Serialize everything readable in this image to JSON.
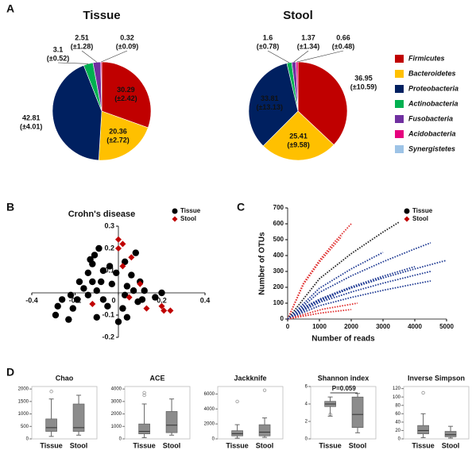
{
  "panel_labels": [
    "A",
    "B",
    "C",
    "D"
  ],
  "chart_data": [
    {
      "type": "pie",
      "categories": [
        "Firmicutes",
        "Bacteroidetes",
        "Proteobacteria",
        "Actinobacteria",
        "Fusobacteria",
        "Acidobacteria",
        "Synergistetes"
      ],
      "colors": [
        "#c00000",
        "#ffc000",
        "#002060",
        "#00b050",
        "#7030a0",
        "#e6007e",
        "#9dc3e6"
      ],
      "series": [
        {
          "name": "Tissue",
          "values": [
            30.29,
            20.36,
            42.81,
            3.1,
            2.51,
            0.32,
            null
          ],
          "error_labels": [
            "(±2.42)",
            "(±2.72)",
            "(±4.01)",
            "(±0.52)",
            "(±1.28)",
            "(±0.09)",
            null
          ]
        },
        {
          "name": "Stool",
          "values": [
            36.95,
            25.41,
            33.81,
            1.6,
            1.37,
            0.66,
            null
          ],
          "error_labels": [
            "(±10.59)",
            "(±9.58)",
            "(±13.13)",
            "(±0.78)",
            "(±1.34)",
            "(±0.48)",
            null
          ]
        }
      ]
    },
    {
      "type": "scatter",
      "title": "Crohn's disease",
      "xlim": [
        -0.4,
        0.4
      ],
      "ylim": [
        -0.2,
        0.3
      ],
      "xticks": [
        -0.4,
        -0.2,
        0,
        0.2,
        0.4
      ],
      "yticks": [
        -0.2,
        -0.1,
        0.1,
        0.2,
        0.3
      ],
      "series": [
        {
          "name": "Tissue",
          "color": "#000000",
          "marker": "circle",
          "x": [
            -0.09,
            -0.11,
            -0.13,
            0.08,
            0.03,
            -0.04,
            -0.07,
            -0.14,
            -0.01,
            0.06,
            -0.18,
            -0.12,
            -0.08,
            -0.03,
            0.04,
            0.1,
            -0.16,
            -0.1,
            0.07,
            0.12,
            -0.22,
            -0.14,
            0.03,
            0.17,
            -0.26,
            -0.19,
            -0.07,
            0.09,
            -0.28,
            -0.21,
            -0.05,
            0.02,
            -0.29,
            -0.23,
            -0.1,
            0.04,
            0.0,
            0.11,
            0.2,
            -0.12
          ],
          "values": [
            0.2,
            0.17,
            0.15,
            0.18,
            0.14,
            0.12,
            0.1,
            0.09,
            0.09,
            0.08,
            0.05,
            0.05,
            0.05,
            0.04,
            0.03,
            0.05,
            0.02,
            0.01,
            0.01,
            0.01,
            -0.01,
            -0.01,
            -0.01,
            -0.02,
            -0.03,
            -0.03,
            -0.03,
            -0.04,
            -0.06,
            -0.07,
            -0.06,
            -0.07,
            -0.1,
            -0.12,
            -0.11,
            -0.11,
            -0.13,
            -0.03,
            0.0,
            0.13
          ]
        },
        {
          "name": "Stool",
          "color": "#c00000",
          "marker": "diamond",
          "x": [
            0.0,
            0.02,
            0.0,
            0.06,
            0.02,
            0.1,
            -0.12,
            0.13,
            0.2,
            0.24,
            0.21,
            0.05
          ],
          "values": [
            0.24,
            0.22,
            0.2,
            0.16,
            0.12,
            0.04,
            -0.05,
            -0.07,
            -0.06,
            -0.08,
            -0.08,
            -0.02
          ]
        }
      ]
    },
    {
      "type": "line",
      "x_label": "Number of reads",
      "y_label": "Number of OTUs",
      "xlim": [
        0,
        5000
      ],
      "ylim": [
        0,
        700
      ],
      "xticks": [
        0,
        1000,
        2000,
        3000,
        4000,
        5000
      ],
      "yticks": [
        0,
        100,
        200,
        300,
        400,
        500,
        600,
        700
      ],
      "series": [
        {
          "name": "Tissue",
          "color": "#000000",
          "marker": "circle"
        },
        {
          "name": "Stool",
          "color": "#c00000",
          "marker": "diamond"
        }
      ],
      "curves": [
        {
          "color": "#e03030",
          "x": [
            0,
            500,
            1000,
            1500,
            2000
          ],
          "values": [
            0,
            227,
            370,
            491,
            600
          ]
        },
        {
          "color": "#e03030",
          "x": [
            0,
            500,
            1000,
            1700
          ],
          "values": [
            0,
            220,
            359,
            520
          ]
        },
        {
          "color": "#222222",
          "x": [
            0,
            1000,
            2000,
            3000,
            3500
          ],
          "values": [
            0,
            254,
            412,
            548,
            610
          ]
        },
        {
          "color": "#1f3a93",
          "x": [
            0,
            1000,
            2000,
            3000,
            4000,
            4500
          ],
          "values": [
            0,
            168,
            272,
            361,
            442,
            480
          ]
        },
        {
          "color": "#1f3a93",
          "x": [
            0,
            1000,
            2000,
            3000,
            4000,
            5000
          ],
          "values": [
            0,
            120,
            195,
            259,
            316,
            370
          ]
        },
        {
          "color": "#1f3a93",
          "x": [
            0,
            1000,
            2000,
            3000
          ],
          "values": [
            0,
            194,
            316,
            420
          ]
        },
        {
          "color": "#1f3a93",
          "x": [
            0,
            1000,
            2000,
            3000,
            4000,
            4500
          ],
          "values": [
            0,
            105,
            170,
            226,
            276,
            300
          ]
        },
        {
          "color": "#1f3a93",
          "x": [
            0,
            1000,
            2000,
            3000,
            4000,
            4500
          ],
          "values": [
            0,
            84,
            136,
            181,
            221,
            240
          ]
        },
        {
          "color": "#1f3a93",
          "x": [
            0,
            1000,
            2000,
            3000
          ],
          "values": [
            0,
            120,
            196,
            260
          ]
        },
        {
          "color": "#1f3a93",
          "x": [
            0,
            1000,
            2000,
            3000,
            4000
          ],
          "values": [
            0,
            125,
            203,
            270,
            330
          ]
        },
        {
          "color": "#e03030",
          "x": [
            0,
            1100,
            2200
          ],
          "values": [
            0,
            62,
            100
          ]
        },
        {
          "color": "#e03030",
          "x": [
            0,
            1000,
            2000
          ],
          "values": [
            0,
            37,
            60
          ]
        },
        {
          "color": "#1f3a93",
          "x": [
            0,
            500,
            1000,
            1500,
            2000
          ],
          "values": [
            0,
            76,
            123,
            164,
            200
          ]
        },
        {
          "color": "#1f3a93",
          "x": [
            0,
            500,
            1000,
            1500
          ],
          "values": [
            0,
            69,
            113,
            150
          ]
        }
      ]
    },
    {
      "type": "box",
      "title": "Chao",
      "categories": [
        "Tissue",
        "Stool"
      ],
      "ylim": [
        0,
        2100
      ],
      "yticks": [
        0,
        500,
        1000,
        1500,
        2000
      ],
      "boxes": [
        {
          "min": 100,
          "q1": 300,
          "median": 450,
          "q3": 800,
          "max": 1600,
          "outliers": [
            1900
          ]
        },
        {
          "min": 150,
          "q1": 300,
          "median": 450,
          "q3": 1400,
          "max": 1750,
          "outliers": []
        }
      ]
    },
    {
      "type": "box",
      "title": "ACE",
      "categories": [
        "Tissue",
        "Stool"
      ],
      "ylim": [
        0,
        4200
      ],
      "yticks": [
        0,
        1000,
        2000,
        3000,
        4000
      ],
      "boxes": [
        {
          "min": 100,
          "q1": 400,
          "median": 600,
          "q3": 1200,
          "max": 2800,
          "outliers": [
            3500,
            3700
          ]
        },
        {
          "min": 300,
          "q1": 500,
          "median": 1100,
          "q3": 2200,
          "max": 3200,
          "outliers": []
        }
      ]
    },
    {
      "type": "box",
      "title": "Jackknife",
      "categories": [
        "Tissue",
        "Stool"
      ],
      "ylim": [
        0,
        7000
      ],
      "yticks": [
        0,
        2000,
        4000,
        6000
      ],
      "boxes": [
        {
          "min": 100,
          "q1": 400,
          "median": 700,
          "q3": 1100,
          "max": 1900,
          "outliers": [
            5000
          ]
        },
        {
          "min": 200,
          "q1": 400,
          "median": 900,
          "q3": 1900,
          "max": 2800,
          "outliers": [
            6500
          ]
        }
      ]
    },
    {
      "type": "box",
      "title": "Shannon index",
      "categories": [
        "Tissue",
        "Stool"
      ],
      "ylim": [
        0,
        6
      ],
      "yticks": [
        0,
        2,
        4,
        6
      ],
      "annotation": "P=0.059",
      "boxes": [
        {
          "min": 2.6,
          "q1": 3.7,
          "median": 4.0,
          "q3": 4.3,
          "max": 4.8,
          "outliers": [
            2.8
          ]
        },
        {
          "min": 0.7,
          "q1": 1.3,
          "median": 2.8,
          "q3": 4.8,
          "max": 5.2,
          "outliers": []
        }
      ]
    },
    {
      "type": "box",
      "title": "Inverse Simpson",
      "categories": [
        "Tissue",
        "Stool"
      ],
      "ylim": [
        0,
        125
      ],
      "yticks": [
        0,
        20,
        40,
        60,
        80,
        100,
        120
      ],
      "boxes": [
        {
          "min": 3,
          "q1": 12,
          "median": 20,
          "q3": 32,
          "max": 60,
          "outliers": [
            110
          ]
        },
        {
          "min": 2,
          "q1": 5,
          "median": 10,
          "q3": 18,
          "max": 30,
          "outliers": []
        }
      ]
    }
  ]
}
